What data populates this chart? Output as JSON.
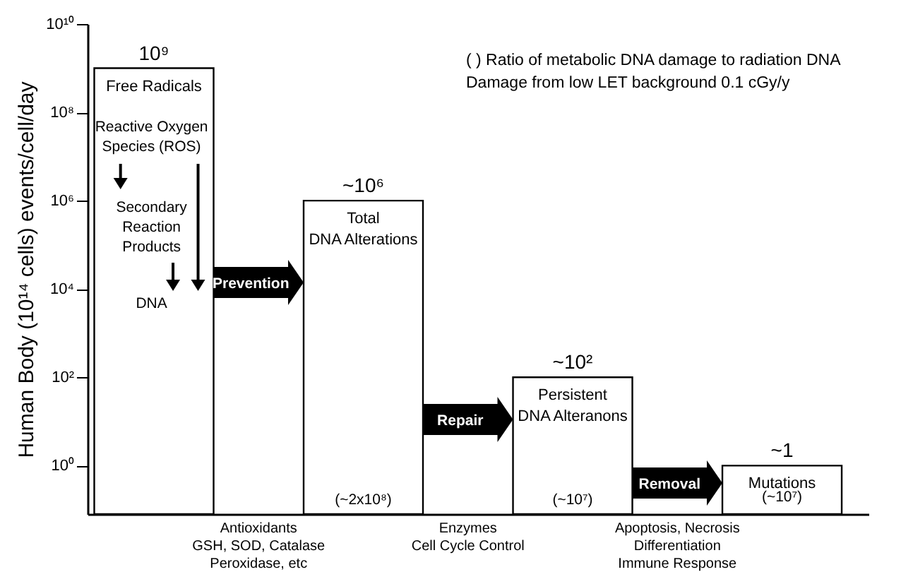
{
  "chart_data": {
    "type": "bar",
    "tick_labels": "y",
    "log": true,
    "ylabel": "Human Body (10¹⁴ cells) events/cell/day",
    "categories": [
      "Free Radicals",
      "Total\nDNA Alterations",
      "Persistent\nDNA Alteranons",
      "Mutations"
    ],
    "values": [
      1000000000,
      1000000,
      100,
      1
    ],
    "colors": [
      "#ffffff",
      "#ffffff",
      "#ffffff",
      "#ffffff"
    ],
    "ylim": [
      0.08,
      10000000000
    ],
    "yticks": [
      {
        "value": 1,
        "label": "10⁰"
      },
      {
        "value": 100,
        "label": "10²"
      },
      {
        "value": 10000,
        "label": "10⁴"
      },
      {
        "value": 1000000,
        "label": "10⁶"
      },
      {
        "value": 100000000,
        "label": "10⁸"
      },
      {
        "value": 10000000000,
        "label": "10¹⁰"
      }
    ],
    "grid": false,
    "annotations": [
      "( ) Ratio of metabolic DNA damage to radiation DNA\nDamage from low LET background 0.1 cGy/y",
      "10⁹",
      "~10⁶",
      "~10²",
      "~1",
      "Reactive Oxygen\nSpecies (ROS)",
      "Secondary\nReaction\nProducts",
      "DNA",
      "Prevention",
      "Repair",
      "Removal",
      "Antioxidants\nGSH, SOD, Catalase\nPeroxidase, etc",
      "Enzymes\nCell Cycle Control",
      "Apoptosis, Necrosis\nDifferentiation\nImmune Response",
      "(~2x10⁸)",
      "(~10⁷)",
      "(~10⁷)"
    ]
  }
}
